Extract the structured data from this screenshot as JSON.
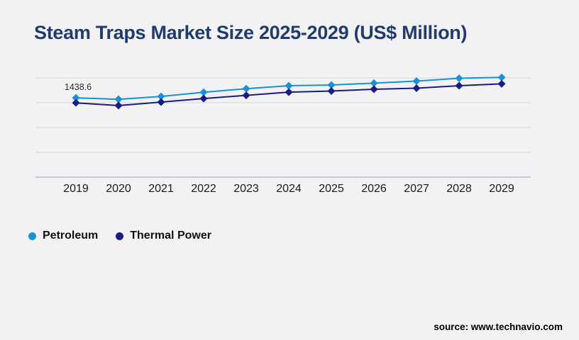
{
  "chart_data": {
    "type": "line",
    "title": "Steam Traps Market Size 2025-2029 (US$ Million)",
    "categories": [
      "2019",
      "2020",
      "2021",
      "2022",
      "2023",
      "2024",
      "2025",
      "2026",
      "2027",
      "2028",
      "2029"
    ],
    "series": [
      {
        "name": "Petroleum",
        "color": "#1b90d5",
        "marker": "diamond",
        "values": [
          1438.6,
          1412,
          1464,
          1540,
          1605,
          1658,
          1672,
          1705,
          1742,
          1794,
          1810
        ]
      },
      {
        "name": "Thermal Power",
        "color": "#1b1b84",
        "marker": "diamond",
        "values": [
          1348,
          1298,
          1362,
          1426,
          1484,
          1542,
          1562,
          1594,
          1614,
          1658,
          1692
        ]
      }
    ],
    "annotations": [
      {
        "series": "Petroleum",
        "category": "2019",
        "label": "1438.6"
      }
    ],
    "xlabel": "",
    "ylabel": "",
    "ylim": [
      0,
      1800
    ],
    "y_gridline_step": 450,
    "grid": "horizontal-only",
    "y_axis_labels_visible": false,
    "legend_position": "bottom-left"
  },
  "footer": {
    "source": "source: www.technavio.com"
  },
  "colors": {
    "background": "#f2f2f4",
    "title": "#1f3c6d",
    "gridline": "#d8d8dd",
    "axis_line": "#b3b3b9",
    "axis_tick_labels": "#1a1a1a",
    "annotation_text": "#2e2e2e",
    "legend_text": "#121212",
    "source_text": "#000000"
  }
}
